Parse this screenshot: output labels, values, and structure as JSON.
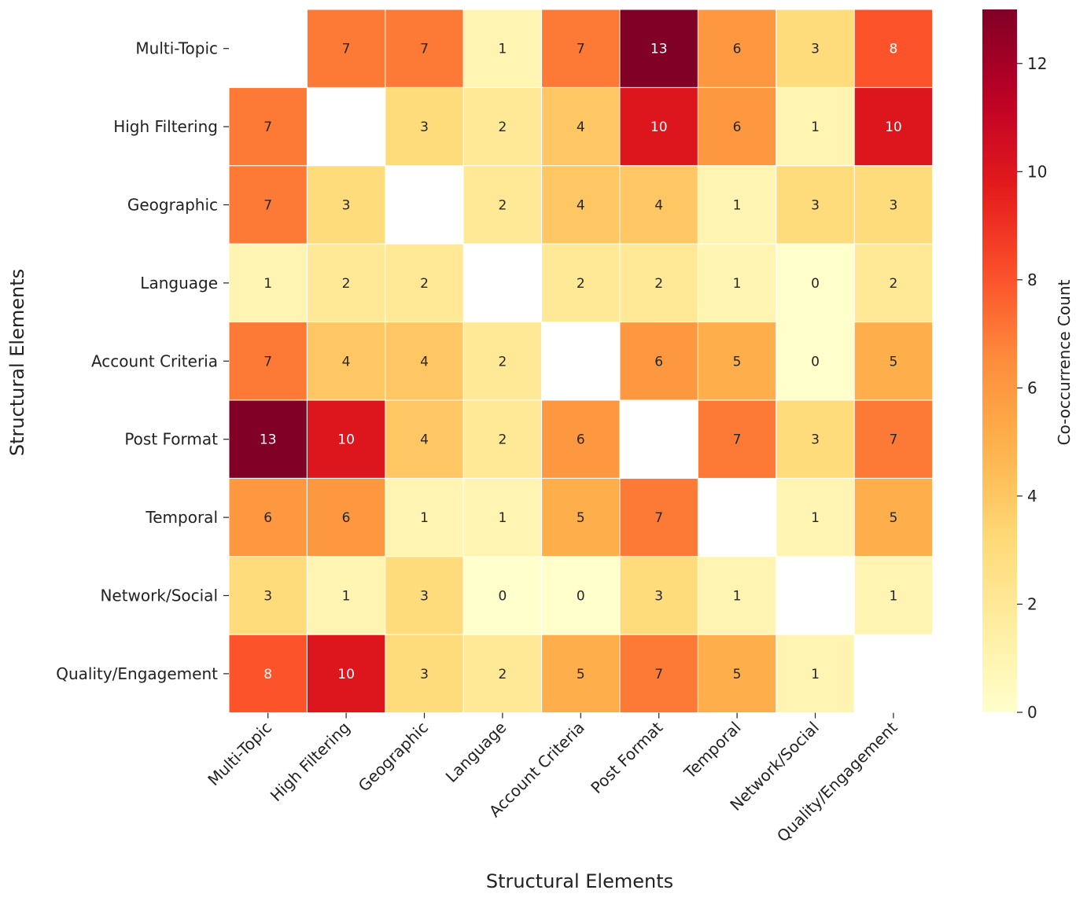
{
  "chart_data": {
    "type": "heatmap",
    "title": "",
    "xlabel": "Structural Elements",
    "ylabel": "Structural Elements",
    "categories": [
      "Multi-Topic",
      "High Filtering",
      "Geographic",
      "Language",
      "Account Criteria",
      "Post Format",
      "Temporal",
      "Network/Social",
      "Quality/Engagement"
    ],
    "values": [
      [
        null,
        7,
        7,
        1,
        7,
        13,
        6,
        3,
        8
      ],
      [
        7,
        null,
        3,
        2,
        4,
        10,
        6,
        1,
        10
      ],
      [
        7,
        3,
        null,
        2,
        4,
        4,
        1,
        3,
        3
      ],
      [
        1,
        2,
        2,
        null,
        2,
        2,
        1,
        0,
        2
      ],
      [
        7,
        4,
        4,
        2,
        null,
        6,
        5,
        0,
        5
      ],
      [
        13,
        10,
        4,
        2,
        6,
        null,
        7,
        3,
        7
      ],
      [
        6,
        6,
        1,
        1,
        5,
        7,
        null,
        1,
        5
      ],
      [
        3,
        1,
        3,
        0,
        0,
        3,
        1,
        null,
        1
      ],
      [
        8,
        10,
        3,
        2,
        5,
        7,
        5,
        1,
        null
      ]
    ],
    "colorbar": {
      "label": "Co-occurrence Count",
      "range": [
        0,
        13
      ],
      "ticks": [
        0,
        2,
        4,
        6,
        8,
        10,
        12
      ],
      "colormap": "YlOrRd"
    }
  }
}
